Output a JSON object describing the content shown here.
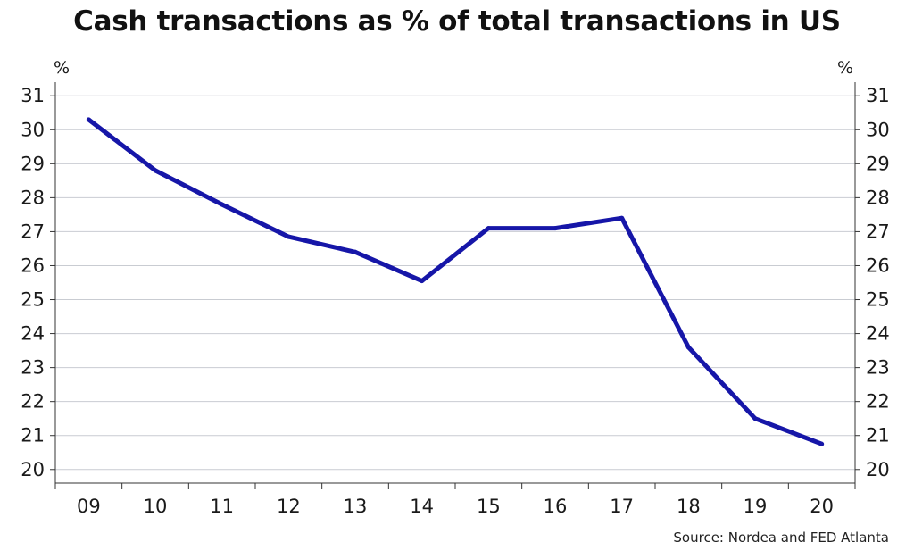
{
  "chart_data": {
    "type": "line",
    "title": "Cash transactions as % of total transactions in US",
    "y_unit_left": "%",
    "y_unit_right": "%",
    "categories": [
      "09",
      "10",
      "11",
      "12",
      "13",
      "14",
      "15",
      "16",
      "17",
      "18",
      "19",
      "20"
    ],
    "series": [
      {
        "values": [
          30.3,
          28.8,
          27.8,
          26.85,
          26.4,
          25.55,
          27.1,
          27.1,
          27.4,
          23.6,
          21.5,
          20.75
        ],
        "color": "#1616a8"
      }
    ],
    "ylim": [
      19.6,
      31.4
    ],
    "yticks": [
      20,
      21,
      22,
      23,
      24,
      25,
      26,
      27,
      28,
      29,
      30,
      31
    ],
    "grid": true,
    "right_axis_mirror": true,
    "source": "Source: Nordea and FED Atlanta"
  }
}
